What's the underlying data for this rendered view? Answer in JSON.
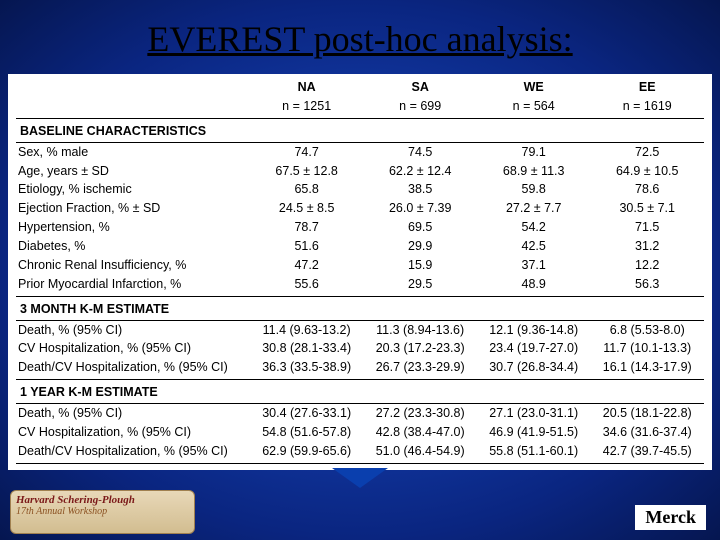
{
  "title": "EVEREST post-hoc analysis:",
  "sponsor": "Merck",
  "badge": {
    "line1": "Harvard Schering-Plough",
    "line2": "17th Annual Workshop"
  },
  "columns": [
    {
      "code": "NA",
      "n": "n = 1251"
    },
    {
      "code": "SA",
      "n": "n = 699"
    },
    {
      "code": "WE",
      "n": "n = 564"
    },
    {
      "code": "EE",
      "n": "n = 1619"
    }
  ],
  "sections": [
    {
      "heading": "BASELINE CHARACTERISTICS",
      "rows": [
        {
          "label": "Sex, % male",
          "v": [
            "74.7",
            "74.5",
            "79.1",
            "72.5"
          ]
        },
        {
          "label": "Age, years ± SD",
          "v": [
            "67.5 ± 12.8",
            "62.2 ± 12.4",
            "68.9 ± 11.3",
            "64.9 ± 10.5"
          ]
        },
        {
          "label": "Etiology, % ischemic",
          "v": [
            "65.8",
            "38.5",
            "59.8",
            "78.6"
          ]
        },
        {
          "label": "Ejection Fraction, % ± SD",
          "v": [
            "24.5 ± 8.5",
            "26.0 ± 7.39",
            "27.2 ± 7.7",
            "30.5 ± 7.1"
          ]
        },
        {
          "label": "Hypertension, %",
          "v": [
            "78.7",
            "69.5",
            "54.2",
            "71.5"
          ]
        },
        {
          "label": "Diabetes, %",
          "v": [
            "51.6",
            "29.9",
            "42.5",
            "31.2"
          ]
        },
        {
          "label": "Chronic Renal Insufficiency, %",
          "v": [
            "47.2",
            "15.9",
            "37.1",
            "12.2"
          ]
        },
        {
          "label": "Prior Myocardial Infarction, %",
          "v": [
            "55.6",
            "29.5",
            "48.9",
            "56.3"
          ]
        }
      ]
    },
    {
      "heading": "3 MONTH K-M ESTIMATE",
      "rows": [
        {
          "label": "Death, % (95% CI)",
          "v": [
            "11.4 (9.63-13.2)",
            "11.3 (8.94-13.6)",
            "12.1 (9.36-14.8)",
            "6.8 (5.53-8.0)"
          ]
        },
        {
          "label": "CV Hospitalization, % (95% CI)",
          "v": [
            "30.8 (28.1-33.4)",
            "20.3 (17.2-23.3)",
            "23.4 (19.7-27.0)",
            "11.7 (10.1-13.3)"
          ]
        },
        {
          "label": "Death/CV Hospitalization, % (95% CI)",
          "v": [
            "36.3 (33.5-38.9)",
            "26.7 (23.3-29.9)",
            "30.7 (26.8-34.4)",
            "16.1 (14.3-17.9)"
          ]
        }
      ]
    },
    {
      "heading": "1 YEAR K-M ESTIMATE",
      "rows": [
        {
          "label": "Death, % (95% CI)",
          "v": [
            "30.4 (27.6-33.1)",
            "27.2 (23.3-30.8)",
            "27.1 (23.0-31.1)",
            "20.5 (18.1-22.8)"
          ]
        },
        {
          "label": "CV Hospitalization, % (95% CI)",
          "v": [
            "54.8 (51.6-57.8)",
            "42.8 (38.4-47.0)",
            "46.9 (41.9-51.5)",
            "34.6 (31.6-37.4)"
          ]
        },
        {
          "label": "Death/CV Hospitalization, % (95% CI)",
          "v": [
            "62.9 (59.9-65.6)",
            "51.0 (46.4-54.9)",
            "55.8 (51.1-60.1)",
            "42.7 (39.7-45.5)"
          ]
        }
      ]
    }
  ]
}
